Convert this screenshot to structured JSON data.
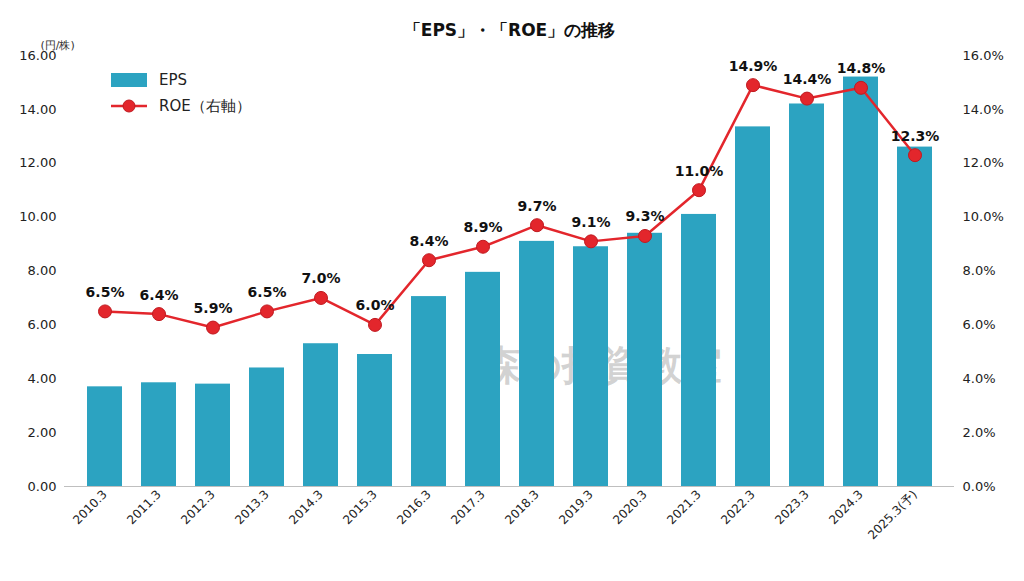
{
  "chart_data": {
    "type": "bar",
    "title": "「EPS」・「ROE」の推移",
    "watermark": "森の投資教室",
    "ylabel": "(円/株)",
    "categories": [
      "2010.3",
      "2011.3",
      "2012.3",
      "2013.3",
      "2014.3",
      "2015.3",
      "2016.3",
      "2017.3",
      "2018.3",
      "2019.3",
      "2020.3",
      "2021.3",
      "2022.3",
      "2023.3",
      "2024.3",
      "2025.3(予)"
    ],
    "series": [
      {
        "name": "EPS",
        "type": "bar",
        "color": "#2ca3c1",
        "values": [
          3.7,
          3.85,
          3.8,
          4.4,
          5.3,
          4.9,
          7.05,
          7.95,
          9.1,
          8.9,
          9.4,
          10.1,
          13.35,
          14.2,
          15.2,
          12.6
        ]
      },
      {
        "name": "ROE（右軸）",
        "type": "line",
        "axis": "y2",
        "color": "#e3262c",
        "marker": "circle",
        "data_labels": true,
        "values": [
          6.5,
          6.4,
          5.9,
          6.5,
          7.0,
          6.0,
          8.4,
          8.9,
          9.7,
          9.1,
          9.3,
          11.0,
          14.9,
          14.4,
          14.8,
          12.3
        ],
        "value_labels": [
          "6.5%",
          "6.4%",
          "5.9%",
          "6.5%",
          "7.0%",
          "6.0%",
          "8.4%",
          "8.9%",
          "9.7%",
          "9.1%",
          "9.3%",
          "11.0%",
          "14.9%",
          "14.4%",
          "14.8%",
          "12.3%"
        ]
      }
    ],
    "ylim": [
      0,
      16
    ],
    "yticks": [
      {
        "value": 0,
        "label": "0.00"
      },
      {
        "value": 2,
        "label": "2.00"
      },
      {
        "value": 4,
        "label": "4.00"
      },
      {
        "value": 6,
        "label": "6.00"
      },
      {
        "value": 8,
        "label": "8.00"
      },
      {
        "value": 10,
        "label": "10.00"
      },
      {
        "value": 12,
        "label": "12.00"
      },
      {
        "value": 14,
        "label": "14.00"
      },
      {
        "value": 16,
        "label": "16.00"
      }
    ],
    "y2lim": [
      0,
      16
    ],
    "y2ticks": [
      {
        "value": 0,
        "label": "0.0%"
      },
      {
        "value": 2,
        "label": "2.0%"
      },
      {
        "value": 4,
        "label": "4.0%"
      },
      {
        "value": 6,
        "label": "6.0%"
      },
      {
        "value": 8,
        "label": "8.0%"
      },
      {
        "value": 10,
        "label": "10.0%"
      },
      {
        "value": 12,
        "label": "12.0%"
      },
      {
        "value": 14,
        "label": "14.0%"
      },
      {
        "value": 16,
        "label": "16.0%"
      }
    ],
    "legend": "upper left",
    "grid": false
  }
}
